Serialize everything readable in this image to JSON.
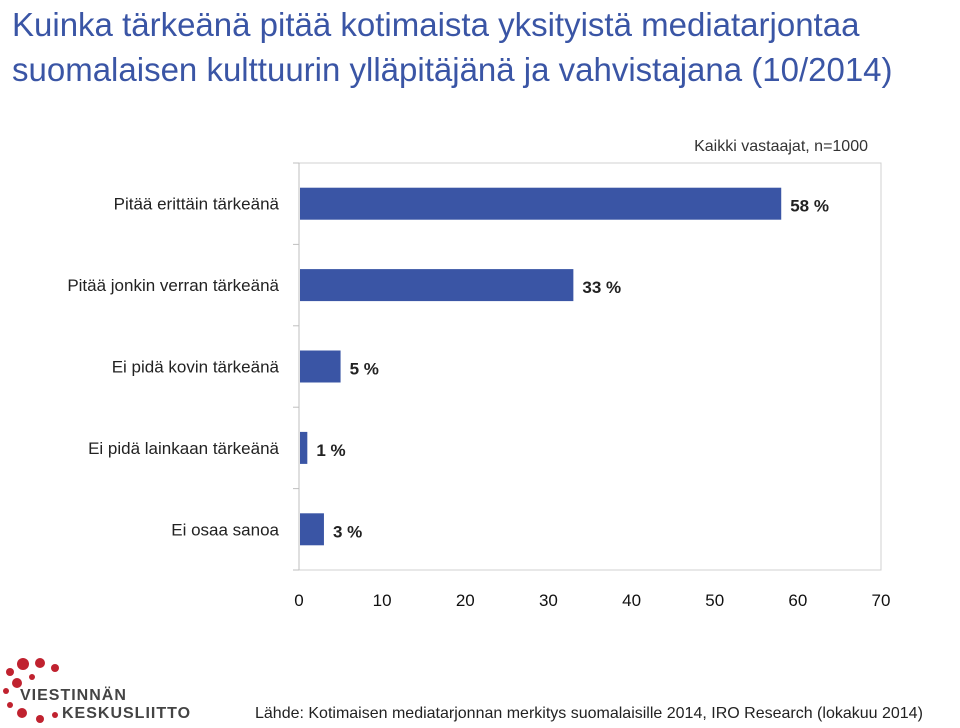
{
  "title": "Kuinka tärkeänä pitää kotimaista yksityistä mediatarjontaa suomalaisen kulttuurin ylläpitäjänä ja vahvistajana (10/2014)",
  "subtitle": "Kaikki vastaajat,  n=1000",
  "footer": "Lähde: Kotimaisen mediatarjonnan merkitys suomalaisille 2014,  IRO Research (lokakuu 2014)",
  "logo": {
    "line1": "VIESTINNÄN",
    "line2": "KESKUSLIITTO"
  },
  "colors": {
    "bar": "#3a55a5",
    "title": "#3a55a5",
    "logo_red": "#c0222f"
  },
  "chart_data": {
    "type": "bar",
    "orientation": "horizontal",
    "categories": [
      "Pitää erittäin tärkeänä",
      "Pitää jonkin verran tärkeänä",
      "Ei pidä kovin tärkeänä",
      "Ei pidä lainkaan tärkeänä",
      "Ei osaa sanoa"
    ],
    "values": [
      58,
      33,
      5,
      1,
      3
    ],
    "value_labels": [
      "58 %",
      "33 %",
      "5 %",
      "1 %",
      "3 %"
    ],
    "xlim": [
      0,
      70
    ],
    "xticks": [
      "0",
      "10",
      "20",
      "30",
      "40",
      "50",
      "60",
      "70"
    ],
    "grid": false,
    "legend": "none"
  }
}
